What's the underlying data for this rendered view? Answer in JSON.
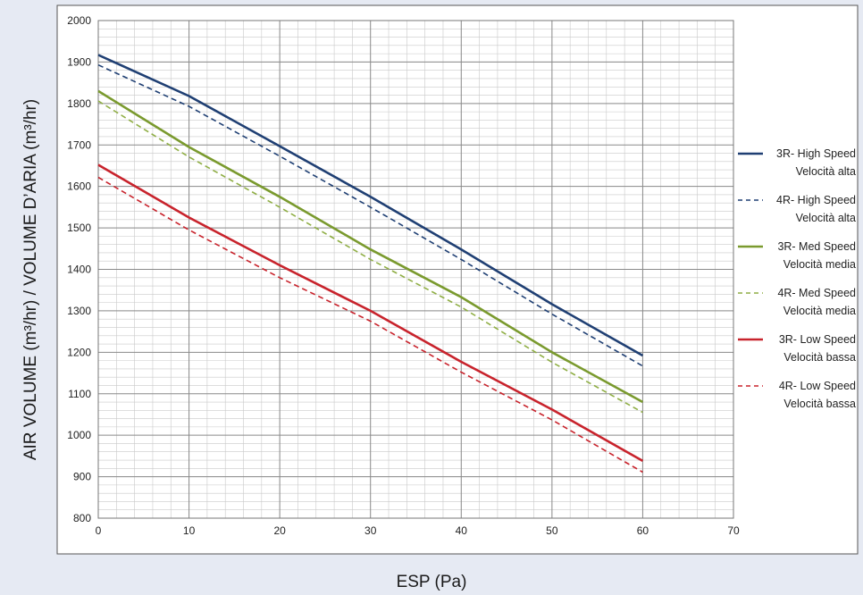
{
  "chart_data": {
    "type": "line",
    "xlabel": "ESP (Pa)",
    "ylabel": "AIR VOLUME (m³/hr) / VOLUME D’ARIA (m³/hr)",
    "xlim": [
      0,
      70
    ],
    "ylim": [
      800,
      2000
    ],
    "x_major_ticks": [
      0,
      10,
      20,
      30,
      40,
      50,
      60,
      70
    ],
    "y_major_ticks": [
      800,
      900,
      1000,
      1100,
      1200,
      1300,
      1400,
      1500,
      1600,
      1700,
      1800,
      1900,
      2000
    ],
    "x_minor_step": 2,
    "y_minor_step": 20,
    "grid": true,
    "legend_position": "right",
    "series": [
      {
        "name": "3R- High Speed",
        "name_line2": "Velocità alta",
        "color": "#1f3f73",
        "dash": "solid",
        "x": [
          0,
          10,
          20,
          30,
          40,
          50,
          60
        ],
        "y": [
          1917,
          1818,
          1697,
          1575,
          1448,
          1316,
          1192
        ]
      },
      {
        "name": "4R- High Speed",
        "name_line2": "Velocità alta",
        "color": "#1f3f73",
        "dash": "dashed",
        "x": [
          0,
          10,
          20,
          30,
          40,
          50,
          60
        ],
        "y": [
          1893,
          1793,
          1673,
          1550,
          1424,
          1292,
          1167
        ]
      },
      {
        "name": "3R- Med Speed",
        "name_line2": "Velocità media",
        "color": "#7a9a2e",
        "dash": "solid",
        "x": [
          0,
          10,
          20,
          30,
          40,
          50,
          60
        ],
        "y": [
          1830,
          1695,
          1575,
          1448,
          1333,
          1200,
          1080
        ]
      },
      {
        "name": "4R- Med Speed",
        "name_line2": "Velocità media",
        "color": "#8fae45",
        "dash": "dashed",
        "x": [
          0,
          10,
          20,
          30,
          40,
          50,
          60
        ],
        "y": [
          1806,
          1671,
          1550,
          1424,
          1309,
          1176,
          1055
        ]
      },
      {
        "name": "3R- Low Speed",
        "name_line2": "Velocità bassa",
        "color": "#c8232c",
        "dash": "solid",
        "x": [
          0,
          10,
          20,
          30,
          40,
          50,
          60
        ],
        "y": [
          1652,
          1525,
          1410,
          1300,
          1177,
          1062,
          938
        ]
      },
      {
        "name": "4R- Low Speed",
        "name_line2": "Velocità bassa",
        "color": "#c8232c",
        "dash": "dashed",
        "x": [
          0,
          10,
          20,
          30,
          40,
          50,
          60
        ],
        "y": [
          1622,
          1495,
          1380,
          1275,
          1152,
          1037,
          911
        ]
      }
    ]
  }
}
